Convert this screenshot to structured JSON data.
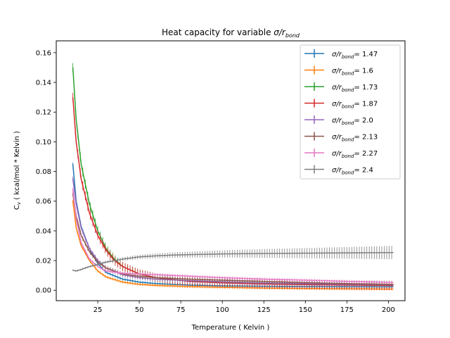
{
  "chart_data": {
    "type": "line",
    "title_prefix": "Heat capacity for variable ",
    "title_math": "σ/r",
    "title_sub": "bond",
    "xlabel": "Temperature ( Kelvin )",
    "ylabel_main": "C",
    "ylabel_sub": "v",
    "ylabel_rest": " ( kcal/mol * Kelvin )",
    "xlim": [
      0,
      210
    ],
    "ylim": [
      -0.007,
      0.168
    ],
    "xticks": [
      25,
      50,
      75,
      100,
      125,
      150,
      175,
      200
    ],
    "xtick_labels": [
      "25",
      "50",
      "75",
      "100",
      "125",
      "150",
      "175",
      "200"
    ],
    "yticks": [
      0.0,
      0.02,
      0.04,
      0.06,
      0.08,
      0.1,
      0.12,
      0.14,
      0.16
    ],
    "ytick_labels": [
      "0.00",
      "0.02",
      "0.04",
      "0.06",
      "0.08",
      "0.10",
      "0.12",
      "0.14",
      "0.16"
    ],
    "grid": false,
    "legend_position": "top-right",
    "legend_prefix": "σ/r",
    "legend_sub": "bond",
    "series": [
      {
        "name": "1.47",
        "color": "#1f77b4",
        "x": [
          10,
          12,
          15,
          20,
          25,
          30,
          40,
          50,
          60,
          80,
          100,
          125,
          150,
          175,
          203
        ],
        "y": [
          0.085,
          0.06,
          0.043,
          0.028,
          0.018,
          0.012,
          0.0075,
          0.0055,
          0.0045,
          0.0035,
          0.003,
          0.0027,
          0.0025,
          0.0024,
          0.0023
        ],
        "err": 0.001
      },
      {
        "name": "1.6",
        "color": "#ff7f0e",
        "x": [
          10,
          12,
          15,
          20,
          25,
          30,
          40,
          50,
          60,
          80,
          100,
          125,
          150,
          175,
          203
        ],
        "y": [
          0.06,
          0.042,
          0.03,
          0.02,
          0.013,
          0.009,
          0.0055,
          0.004,
          0.0033,
          0.0025,
          0.002,
          0.0015,
          0.0012,
          0.001,
          0.0008
        ],
        "err": 0.001
      },
      {
        "name": "1.73",
        "color": "#2ca02c",
        "x": [
          10,
          12,
          15,
          20,
          25,
          30,
          35,
          40,
          50,
          60,
          80,
          100,
          125,
          150,
          175,
          203
        ],
        "y": [
          0.15,
          0.115,
          0.085,
          0.058,
          0.04,
          0.028,
          0.021,
          0.016,
          0.011,
          0.0085,
          0.006,
          0.005,
          0.0043,
          0.004,
          0.0037,
          0.0035
        ],
        "err": 0.003
      },
      {
        "name": "1.87",
        "color": "#d62728",
        "x": [
          10,
          12,
          15,
          20,
          25,
          30,
          35,
          40,
          50,
          60,
          80,
          100,
          125,
          150,
          175,
          203
        ],
        "y": [
          0.13,
          0.1,
          0.075,
          0.052,
          0.037,
          0.027,
          0.02,
          0.016,
          0.011,
          0.0085,
          0.006,
          0.005,
          0.0042,
          0.0038,
          0.0035,
          0.0032
        ],
        "err": 0.003
      },
      {
        "name": "2.0",
        "color": "#9467bd",
        "x": [
          10,
          12,
          15,
          20,
          25,
          30,
          40,
          50,
          60,
          80,
          100,
          125,
          150,
          175,
          203
        ],
        "y": [
          0.075,
          0.058,
          0.042,
          0.028,
          0.02,
          0.015,
          0.0105,
          0.0085,
          0.0075,
          0.0065,
          0.0058,
          0.005,
          0.0045,
          0.004,
          0.0037
        ],
        "err": 0.0015
      },
      {
        "name": "2.13",
        "color": "#8c564b",
        "x": [
          10,
          12,
          15,
          20,
          25,
          30,
          40,
          50,
          60,
          80,
          100,
          125,
          150,
          175,
          203
        ],
        "y": [
          0.065,
          0.05,
          0.037,
          0.026,
          0.019,
          0.015,
          0.011,
          0.0095,
          0.0085,
          0.0075,
          0.0068,
          0.006,
          0.0052,
          0.0045,
          0.004
        ],
        "err": 0.0015
      },
      {
        "name": "2.27",
        "color": "#e377c2",
        "x": [
          10,
          12,
          15,
          20,
          25,
          30,
          40,
          50,
          60,
          80,
          100,
          125,
          150,
          175,
          203
        ],
        "y": [
          0.068,
          0.048,
          0.032,
          0.021,
          0.016,
          0.013,
          0.0115,
          0.011,
          0.0105,
          0.0095,
          0.0085,
          0.0075,
          0.0068,
          0.006,
          0.0053
        ],
        "err": 0.001
      },
      {
        "name": "2.4",
        "color": "#7f7f7f",
        "x": [
          10,
          12,
          15,
          20,
          25,
          30,
          40,
          50,
          60,
          70,
          80,
          100,
          125,
          150,
          175,
          203
        ],
        "y": [
          0.0135,
          0.013,
          0.014,
          0.016,
          0.0175,
          0.019,
          0.021,
          0.0225,
          0.0232,
          0.0237,
          0.024,
          0.0245,
          0.0248,
          0.025,
          0.0252,
          0.0254
        ],
        "err_start": 0.0006,
        "err_end": 0.0045
      }
    ]
  }
}
